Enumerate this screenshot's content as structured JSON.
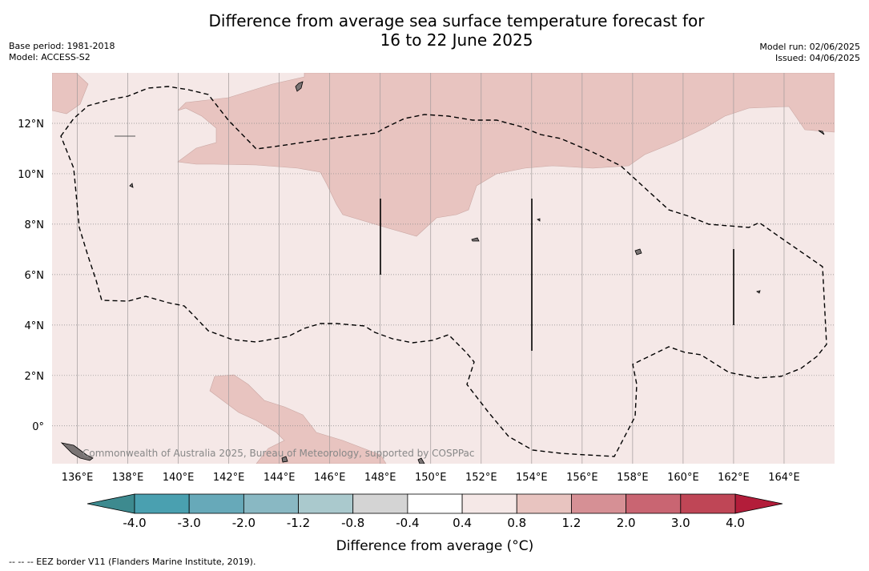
{
  "title_line1": "Difference from average sea surface temperature forecast for",
  "title_line2": "16 to 22 June 2025",
  "base_period": "Base period: 1981-2018",
  "model": "Model: ACCESS-S2",
  "model_run": "Model run: 02/06/2025",
  "issued": "Issued: 04/06/2025",
  "watermark": "Commonwealth of Australia 2025, Bureau of Meteorology, supported by COSPPac",
  "footnote": "--  --  -- EEZ border V11 (Flanders Marine Institute, 2019).",
  "map": {
    "lon_range": [
      135,
      166
    ],
    "lat_range": [
      -1.5,
      14
    ],
    "lon_ticks": [
      "136°E",
      "138°E",
      "140°E",
      "142°E",
      "144°E",
      "146°E",
      "148°E",
      "150°E",
      "152°E",
      "154°E",
      "156°E",
      "158°E",
      "160°E",
      "162°E",
      "164°E"
    ],
    "lat_ticks": [
      "0°",
      "2°N",
      "4°N",
      "6°N",
      "8°N",
      "10°N",
      "12°N"
    ],
    "gridlines": true,
    "background_class": "0.4 to 0.8",
    "shaded_region_class": "0.8 to 1.2"
  },
  "colorbar": {
    "label": "Difference from average (°C)",
    "ticks": [
      "-4.0",
      "-3.0",
      "-2.0",
      "-1.2",
      "-0.8",
      "-0.4",
      "0.4",
      "0.8",
      "1.2",
      "2.0",
      "3.0",
      "4.0"
    ],
    "under_color": "#3d8a8f",
    "over_color": "#b31d3a",
    "colors": [
      "#4aa0b0",
      "#67a9b9",
      "#89b8c3",
      "#aac9cd",
      "#d4d4d4",
      "#ffffff",
      "#f5e8e7",
      "#e8c4c0",
      "#d69095",
      "#c96572",
      "#bf4656"
    ]
  },
  "colors": {
    "sea_light": "#f5e8e7",
    "sea_warm": "#e8c4c0",
    "land": "#7a7474"
  }
}
